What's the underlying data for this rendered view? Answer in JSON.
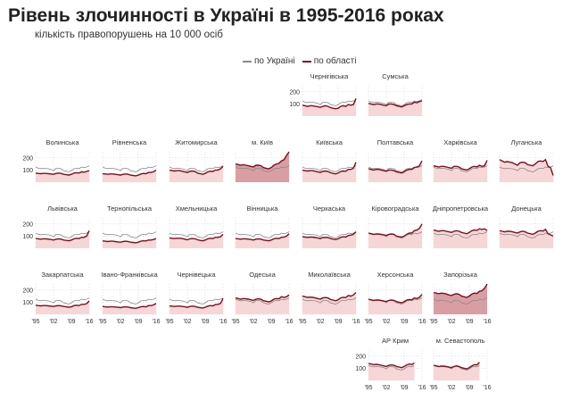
{
  "title": "Рівень злочинності в Україні в 1995-2016 роках",
  "subtitle": "кількість правопорушень на 10 000 осіб",
  "legend": {
    "national": "по Україні",
    "regional": "по області"
  },
  "colors": {
    "national": "#8a8a8a",
    "regional": "#7a0f1e",
    "fill": "#f6d6d6",
    "fill_high": "#d99ea2",
    "grid": "#cfcfcf"
  },
  "chart_data": {
    "type": "line",
    "title": "Рівень злочинності в Україні в 1995-2016 роках",
    "subtitle": "кількість правопорушень на 10 000 осіб",
    "x": [
      1995,
      1996,
      1997,
      1998,
      1999,
      2000,
      2001,
      2002,
      2003,
      2004,
      2005,
      2006,
      2007,
      2008,
      2009,
      2010,
      2011,
      2012,
      2013,
      2014,
      2015,
      2016
    ],
    "x_ticks": [
      "'95",
      "'02",
      "'09",
      "'16"
    ],
    "y_ticks": [
      100,
      200
    ],
    "ylim": [
      0,
      250
    ],
    "national": [
      125,
      115,
      112,
      115,
      113,
      110,
      105,
      95,
      115,
      115,
      110,
      95,
      90,
      84,
      95,
      110,
      115,
      112,
      125,
      120,
      125,
      135
    ],
    "regions": [
      {
        "name": "Чернігівська",
        "values": [
          90,
          85,
          80,
          85,
          85,
          80,
          78,
          72,
          80,
          85,
          80,
          70,
          65,
          60,
          65,
          80,
          85,
          80,
          95,
          90,
          95,
          145
        ]
      },
      {
        "name": "Сумська",
        "values": [
          105,
          100,
          95,
          100,
          100,
          95,
          90,
          85,
          100,
          100,
          95,
          85,
          80,
          75,
          85,
          95,
          100,
          100,
          115,
          110,
          120,
          125
        ]
      },
      {
        "name": "Волинська",
        "values": [
          75,
          72,
          70,
          72,
          72,
          70,
          68,
          65,
          72,
          75,
          72,
          65,
          62,
          58,
          65,
          75,
          78,
          75,
          85,
          82,
          88,
          95
        ]
      },
      {
        "name": "Рівненська",
        "values": [
          70,
          68,
          65,
          68,
          68,
          65,
          62,
          58,
          65,
          68,
          65,
          58,
          55,
          52,
          58,
          68,
          72,
          70,
          80,
          80,
          85,
          100
        ]
      },
      {
        "name": "Житомирська",
        "values": [
          100,
          95,
          92,
          95,
          95,
          90,
          85,
          80,
          90,
          92,
          88,
          75,
          70,
          65,
          72,
          85,
          90,
          88,
          100,
          100,
          110,
          130
        ]
      },
      {
        "name": "м. Київ",
        "values": [
          150,
          145,
          140,
          145,
          140,
          135,
          130,
          125,
          140,
          140,
          135,
          120,
          115,
          110,
          120,
          140,
          150,
          155,
          175,
          185,
          220,
          265
        ]
      },
      {
        "name": "Київська",
        "values": [
          100,
          95,
          92,
          95,
          95,
          90,
          85,
          80,
          90,
          92,
          88,
          78,
          72,
          68,
          75,
          88,
          92,
          90,
          105,
          105,
          115,
          165
        ]
      },
      {
        "name": "Полтавська",
        "values": [
          110,
          105,
          100,
          105,
          105,
          100,
          95,
          90,
          100,
          100,
          95,
          85,
          80,
          75,
          85,
          100,
          105,
          105,
          120,
          125,
          135,
          175
        ]
      },
      {
        "name": "Харківська",
        "values": [
          135,
          130,
          125,
          130,
          130,
          125,
          120,
          115,
          130,
          130,
          125,
          110,
          105,
          100,
          110,
          125,
          130,
          125,
          140,
          130,
          135,
          180
        ]
      },
      {
        "name": "Луганська",
        "values": [
          185,
          175,
          165,
          170,
          165,
          160,
          150,
          140,
          160,
          165,
          160,
          145,
          140,
          135,
          150,
          170,
          175,
          170,
          185,
          130,
          120,
          55
        ]
      },
      {
        "name": "Львівська",
        "values": [
          80,
          78,
          75,
          78,
          78,
          75,
          72,
          68,
          75,
          78,
          75,
          68,
          65,
          62,
          68,
          78,
          82,
          80,
          90,
          90,
          100,
          145
        ]
      },
      {
        "name": "Тернопільська",
        "values": [
          60,
          58,
          55,
          58,
          58,
          55,
          52,
          50,
          55,
          58,
          55,
          50,
          48,
          45,
          50,
          58,
          62,
          60,
          68,
          68,
          72,
          80
        ]
      },
      {
        "name": "Хмельницька",
        "values": [
          85,
          82,
          80,
          82,
          82,
          80,
          75,
          70,
          78,
          80,
          78,
          70,
          65,
          62,
          68,
          78,
          82,
          80,
          90,
          90,
          95,
          115
        ]
      },
      {
        "name": "Вінницька",
        "values": [
          80,
          78,
          75,
          78,
          78,
          75,
          72,
          68,
          75,
          78,
          75,
          68,
          65,
          62,
          68,
          78,
          82,
          80,
          90,
          92,
          100,
          120
        ]
      },
      {
        "name": "Черкаська",
        "values": [
          95,
          92,
          90,
          92,
          92,
          88,
          85,
          80,
          88,
          90,
          88,
          80,
          75,
          72,
          78,
          90,
          95,
          92,
          105,
          108,
          115,
          135
        ]
      },
      {
        "name": "Кіровоградська",
        "values": [
          125,
          120,
          115,
          118,
          118,
          115,
          110,
          105,
          115,
          118,
          115,
          100,
          95,
          92,
          100,
          115,
          125,
          125,
          145,
          150,
          165,
          200
        ]
      },
      {
        "name": "Дніпропетровська",
        "values": [
          150,
          145,
          140,
          145,
          145,
          140,
          135,
          130,
          140,
          145,
          140,
          130,
          125,
          120,
          130,
          145,
          150,
          148,
          160,
          155,
          160,
          145
        ]
      },
      {
        "name": "Донецька",
        "values": [
          145,
          140,
          135,
          140,
          140,
          135,
          130,
          125,
          135,
          140,
          135,
          125,
          120,
          115,
          125,
          140,
          145,
          142,
          155,
          120,
          110,
          100
        ]
      },
      {
        "name": "Закарпатська",
        "values": [
          75,
          72,
          70,
          72,
          72,
          70,
          68,
          65,
          70,
          72,
          70,
          65,
          62,
          58,
          62,
          72,
          75,
          72,
          82,
          82,
          88,
          110
        ]
      },
      {
        "name": "Івано-Франківська",
        "values": [
          65,
          62,
          60,
          62,
          62,
          60,
          58,
          55,
          60,
          62,
          60,
          55,
          52,
          50,
          55,
          62,
          65,
          62,
          72,
          72,
          78,
          90
        ]
      },
      {
        "name": "Чернівецька",
        "values": [
          70,
          68,
          65,
          68,
          68,
          65,
          62,
          58,
          65,
          68,
          65,
          58,
          55,
          52,
          58,
          68,
          72,
          70,
          80,
          82,
          90,
          130
        ]
      },
      {
        "name": "Одеська",
        "values": [
          135,
          130,
          125,
          130,
          128,
          125,
          120,
          115,
          125,
          128,
          125,
          112,
          108,
          102,
          110,
          125,
          130,
          128,
          145,
          140,
          145,
          160
        ]
      },
      {
        "name": "Миколаївська",
        "values": [
          150,
          145,
          140,
          142,
          140,
          135,
          130,
          125,
          135,
          138,
          135,
          122,
          118,
          112,
          120,
          135,
          140,
          138,
          155,
          150,
          160,
          180
        ]
      },
      {
        "name": "Херсонська",
        "values": [
          125,
          120,
          115,
          118,
          118,
          115,
          110,
          105,
          115,
          118,
          115,
          105,
          100,
          95,
          105,
          118,
          122,
          120,
          135,
          130,
          140,
          165
        ]
      },
      {
        "name": "Запорізька",
        "values": [
          180,
          175,
          170,
          175,
          172,
          168,
          160,
          155,
          165,
          170,
          165,
          150,
          145,
          140,
          150,
          168,
          175,
          172,
          190,
          195,
          215,
          265
        ]
      },
      {
        "name": "АР Крим",
        "values": [
          140,
          135,
          130,
          132,
          130,
          125,
          120,
          115,
          125,
          128,
          125,
          115,
          110,
          105,
          115,
          128,
          135,
          130,
          145
        ]
      },
      {
        "name": "м. Севастополь",
        "values": [
          125,
          120,
          115,
          118,
          118,
          115,
          110,
          105,
          115,
          120,
          115,
          105,
          100,
          95,
          105,
          120,
          130,
          128,
          150
        ]
      }
    ]
  }
}
